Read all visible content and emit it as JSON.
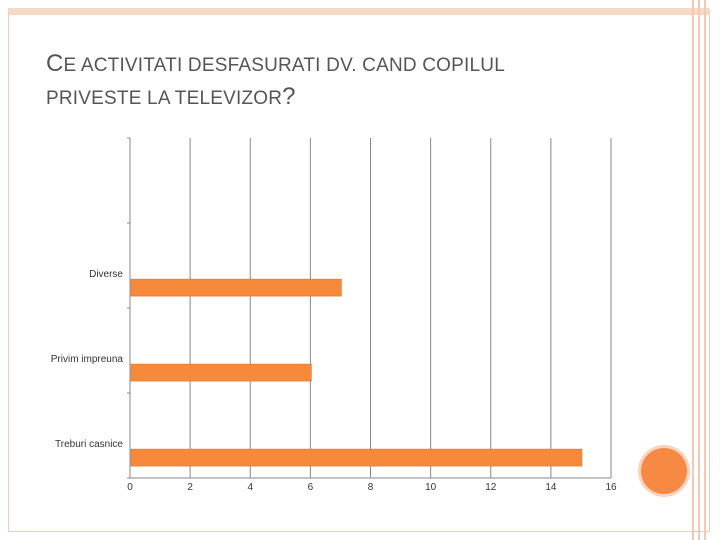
{
  "slide": {
    "title_line1_cap": "C",
    "title_line1_rest": "E ACTIVITATI DESFASURATI DV. CAND COPILUL",
    "title_line2_rest": "PRIVESTE LA TELEVIZOR",
    "title_line2_end": "?"
  },
  "colors": {
    "bar": "#f68a3a",
    "accent": "#f68a45",
    "grid": "#888888"
  },
  "chart_data": {
    "type": "bar",
    "orientation": "horizontal",
    "categories": [
      "Diverse",
      "Privim impreuna",
      "Treburi casnice"
    ],
    "values": [
      7,
      6,
      15
    ],
    "xlim": [
      0,
      16
    ],
    "xticks": [
      "0",
      "2",
      "4",
      "6",
      "8",
      "10",
      "12",
      "14",
      "16"
    ],
    "grid": true
  }
}
